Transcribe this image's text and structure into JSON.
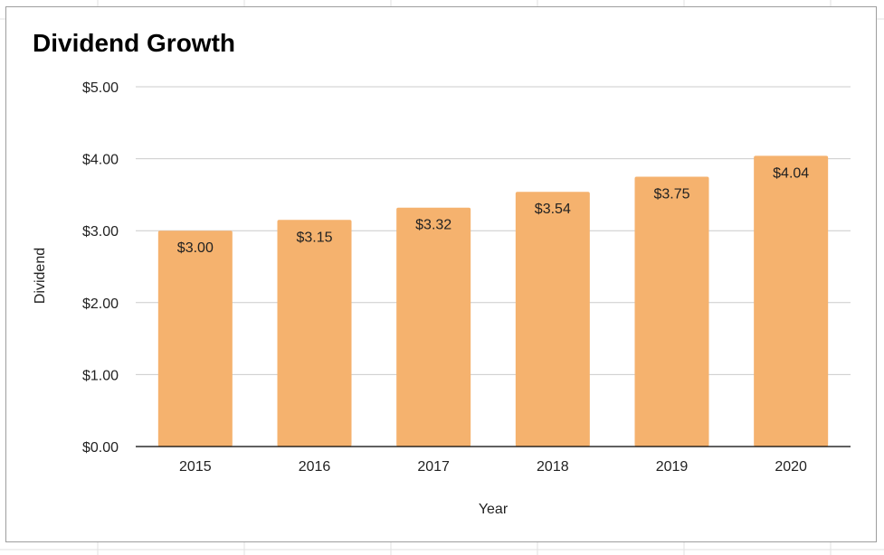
{
  "colors": {
    "bar": "#f5b26e",
    "gridline": "#cccccc",
    "axis": "#000000",
    "text": "#222222",
    "frame": "#9e9e9e"
  },
  "chart_data": {
    "type": "bar",
    "title": "Dividend Growth",
    "xlabel": "Year",
    "ylabel": "Dividend",
    "categories": [
      "2015",
      "2016",
      "2017",
      "2018",
      "2019",
      "2020"
    ],
    "series": [
      {
        "name": "Dividend",
        "values": [
          3.0,
          3.15,
          3.32,
          3.54,
          3.75,
          4.04
        ],
        "labels": [
          "$3.00",
          "$3.15",
          "$3.32",
          "$3.54",
          "$3.75",
          "$4.04"
        ]
      }
    ],
    "ylim": [
      0,
      5
    ],
    "yticks": [
      0,
      1,
      2,
      3,
      4,
      5
    ],
    "ytick_labels": [
      "$0.00",
      "$1.00",
      "$2.00",
      "$3.00",
      "$4.00",
      "$5.00"
    ],
    "grid": true,
    "legend": "none"
  }
}
